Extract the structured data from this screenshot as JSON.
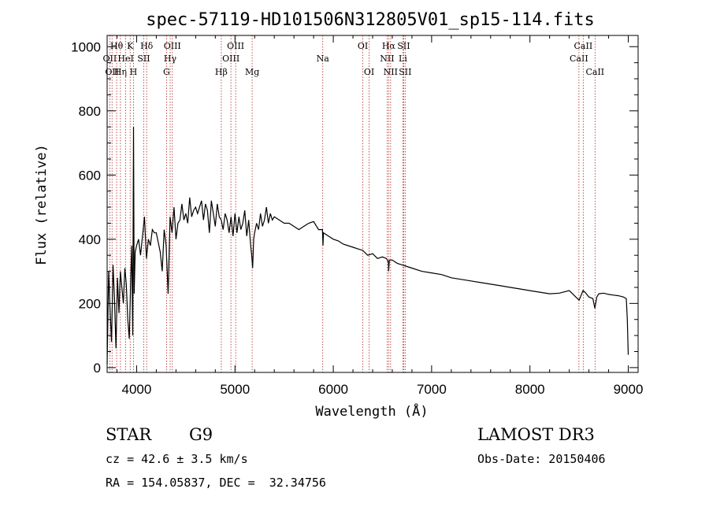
{
  "chart_data": {
    "type": "line",
    "title": "spec-57119-HD101506N312805V01_sp15-114.fits",
    "xlabel": "Wavelength (Å)",
    "ylabel": "Flux (relative)",
    "xlim": [
      3700,
      9100
    ],
    "ylim": [
      -15,
      1035
    ],
    "xticks": [
      4000,
      5000,
      6000,
      7000,
      8000,
      9000
    ],
    "yticks": [
      0,
      200,
      400,
      600,
      800,
      1000
    ],
    "series": [
      {
        "name": "flux",
        "x": [
          3700,
          3715,
          3730,
          3745,
          3760,
          3775,
          3790,
          3805,
          3820,
          3835,
          3850,
          3865,
          3880,
          3895,
          3910,
          3925,
          3940,
          3950,
          3960,
          3968,
          3975,
          3985,
          4000,
          4020,
          4040,
          4060,
          4080,
          4100,
          4120,
          4140,
          4160,
          4180,
          4200,
          4220,
          4240,
          4260,
          4280,
          4300,
          4320,
          4340,
          4360,
          4380,
          4400,
          4420,
          4440,
          4460,
          4480,
          4500,
          4520,
          4540,
          4560,
          4580,
          4600,
          4620,
          4640,
          4660,
          4680,
          4700,
          4720,
          4740,
          4760,
          4780,
          4800,
          4820,
          4840,
          4860,
          4880,
          4900,
          4920,
          4940,
          4960,
          4980,
          5000,
          5020,
          5040,
          5060,
          5080,
          5100,
          5120,
          5140,
          5160,
          5170,
          5180,
          5190,
          5200,
          5220,
          5240,
          5260,
          5280,
          5300,
          5320,
          5340,
          5360,
          5380,
          5400,
          5450,
          5500,
          5550,
          5600,
          5650,
          5700,
          5750,
          5800,
          5850,
          5890,
          5895,
          5900,
          5950,
          6000,
          6050,
          6100,
          6150,
          6200,
          6250,
          6300,
          6350,
          6400,
          6450,
          6500,
          6540,
          6560,
          6563,
          6570,
          6600,
          6650,
          6700,
          6750,
          6800,
          6900,
          7000,
          7100,
          7200,
          7300,
          7400,
          7500,
          7600,
          7700,
          7800,
          7900,
          8000,
          8100,
          8200,
          8300,
          8400,
          8450,
          8500,
          8520,
          8540,
          8560,
          8600,
          8640,
          8660,
          8680,
          8700,
          8750,
          8800,
          8850,
          8900,
          8950,
          8980,
          8990,
          9000
        ],
        "values": [
          10,
          300,
          180,
          80,
          320,
          210,
          60,
          280,
          170,
          300,
          250,
          200,
          310,
          260,
          150,
          90,
          280,
          380,
          100,
          750,
          230,
          360,
          380,
          400,
          350,
          410,
          470,
          340,
          400,
          380,
          430,
          420,
          420,
          390,
          360,
          300,
          430,
          380,
          230,
          470,
          420,
          500,
          400,
          450,
          460,
          510,
          460,
          480,
          450,
          530,
          470,
          490,
          500,
          480,
          500,
          520,
          460,
          510,
          490,
          420,
          520,
          480,
          440,
          510,
          470,
          460,
          430,
          480,
          460,
          420,
          470,
          410,
          480,
          420,
          470,
          430,
          450,
          490,
          410,
          460,
          380,
          350,
          310,
          400,
          420,
          450,
          430,
          480,
          440,
          460,
          500,
          450,
          480,
          460,
          470,
          460,
          450,
          450,
          440,
          430,
          440,
          450,
          455,
          430,
          430,
          380,
          420,
          410,
          400,
          395,
          385,
          380,
          375,
          370,
          365,
          350,
          355,
          340,
          345,
          340,
          330,
          300,
          335,
          335,
          325,
          320,
          315,
          310,
          300,
          295,
          290,
          280,
          275,
          270,
          265,
          260,
          255,
          250,
          245,
          240,
          235,
          230,
          232,
          240,
          225,
          210,
          225,
          240,
          235,
          220,
          215,
          185,
          220,
          230,
          232,
          228,
          226,
          224,
          220,
          215,
          150,
          40
        ]
      }
    ],
    "spectral_lines": [
      {
        "wl": 3727,
        "label": "OII",
        "row": 2
      },
      {
        "wl": 3750,
        "label": "OII",
        "row": 3
      },
      {
        "wl": 3797,
        "label": "Hθ",
        "row": 1
      },
      {
        "wl": 3835,
        "label": "Hη",
        "row": 3
      },
      {
        "wl": 3889,
        "label": "HeI",
        "row": 2
      },
      {
        "wl": 3934,
        "label": "K",
        "row": 1
      },
      {
        "wl": 3968,
        "label": "H",
        "row": 3
      },
      {
        "wl": 4072,
        "label": "SII",
        "row": 2
      },
      {
        "wl": 4102,
        "label": "Hδ",
        "row": 1
      },
      {
        "wl": 4304,
        "label": "G",
        "row": 3
      },
      {
        "wl": 4341,
        "label": "Hγ",
        "row": 2
      },
      {
        "wl": 4363,
        "label": "OIII",
        "row": 1
      },
      {
        "wl": 4861,
        "label": "Hβ",
        "row": 3
      },
      {
        "wl": 4959,
        "label": "OIII",
        "row": 2
      },
      {
        "wl": 5007,
        "label": "OIII",
        "row": 1
      },
      {
        "wl": 5175,
        "label": "Mg",
        "row": 3
      },
      {
        "wl": 5893,
        "label": "Na",
        "row": 2
      },
      {
        "wl": 6300,
        "label": "OI",
        "row": 1
      },
      {
        "wl": 6364,
        "label": "OI",
        "row": 3
      },
      {
        "wl": 6548,
        "label": "NII",
        "row": 2
      },
      {
        "wl": 6563,
        "label": "Hα",
        "row": 1
      },
      {
        "wl": 6583,
        "label": "NII",
        "row": 3
      },
      {
        "wl": 6708,
        "label": "Li",
        "row": 2
      },
      {
        "wl": 6716,
        "label": "SII",
        "row": 1
      },
      {
        "wl": 6731,
        "label": "SII",
        "row": 3
      },
      {
        "wl": 8498,
        "label": "CaII",
        "row": 2
      },
      {
        "wl": 8542,
        "label": "CaII",
        "row": 1
      },
      {
        "wl": 8662,
        "label": "CaII",
        "row": 3
      }
    ]
  },
  "info": {
    "class": "STAR",
    "subclass": "G9",
    "survey": "LAMOST DR3",
    "cz": "cz = 42.6 ± 3.5 km/s",
    "obs_date": "Obs-Date: 20150406",
    "coords": "RA = 154.05837, DEC =  32.34756"
  },
  "colors": {
    "spectrum": "#000000",
    "line_marker": "#b22222",
    "background": "#ffffff"
  }
}
